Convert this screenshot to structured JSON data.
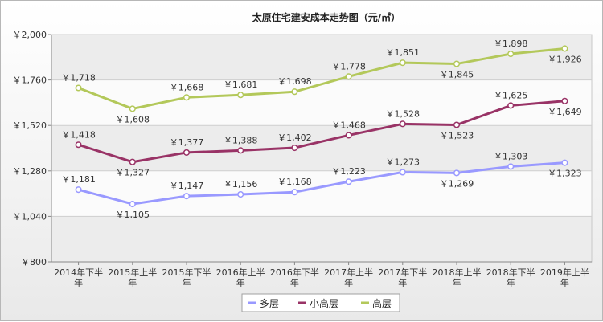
{
  "chart_data": {
    "type": "line",
    "title": "太原住宅建安成本走势图（元/㎡）",
    "categories": [
      "2014年下半年",
      "2015年上半年",
      "2015年下半年",
      "2016年上半年",
      "2016年下半年",
      "2017年上半年",
      "2017年下半年",
      "2018年上半年",
      "2018年下半年",
      "2019年上半年"
    ],
    "series": [
      {
        "name": "多层",
        "color": "#9999ff",
        "values": [
          1181,
          1105,
          1147,
          1156,
          1168,
          1223,
          1273,
          1269,
          1303,
          1323
        ],
        "labels": [
          "￥1,181",
          "￥1,105",
          "￥1,147",
          "￥1,156",
          "￥1,168",
          "￥1,223",
          "￥1,273",
          "￥1,269",
          "￥1,303",
          "￥1,323"
        ]
      },
      {
        "name": "小高层",
        "color": "#993366",
        "values": [
          1418,
          1327,
          1377,
          1388,
          1402,
          1468,
          1528,
          1523,
          1625,
          1649
        ],
        "labels": [
          "￥1,418",
          "￥1,327",
          "￥1,377",
          "￥1,388",
          "￥1,402",
          "￥1,468",
          "￥1,528",
          "￥1,523",
          "￥1,625",
          "￥1,649"
        ]
      },
      {
        "name": "高层",
        "color": "#b3c85a",
        "values": [
          1718,
          1608,
          1668,
          1681,
          1698,
          1778,
          1851,
          1845,
          1898,
          1926
        ],
        "labels": [
          "￥1,718",
          "￥1,608",
          "￥1,668",
          "￥1,681",
          "￥1,698",
          "￥1,778",
          "￥1,851",
          "￥1,845",
          "￥1,898",
          "￥1,926"
        ]
      }
    ],
    "ylim": [
      800,
      2000
    ],
    "yticks": [
      800,
      1040,
      1280,
      1520,
      1760,
      2000
    ],
    "ytick_labels": [
      "￥800",
      "￥1,040",
      "￥1,280",
      "￥1,520",
      "￥1,760",
      "￥2,000"
    ],
    "grid": true,
    "legend": "bottom"
  }
}
